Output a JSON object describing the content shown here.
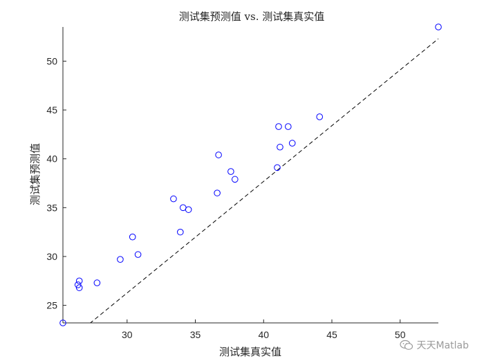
{
  "chart_data": {
    "type": "scatter",
    "title": "测试集预测值 vs. 测试集真实值",
    "xlabel": "测试集真实值",
    "ylabel": "测试集预测值",
    "xlim": [
      25.3,
      52.8
    ],
    "ylim": [
      23.2,
      53.5
    ],
    "xticks": [
      30,
      35,
      40,
      45,
      50
    ],
    "yticks": [
      25,
      30,
      35,
      40,
      45,
      50
    ],
    "grid": false,
    "points": [
      {
        "x": 25.3,
        "y": 23.2
      },
      {
        "x": 26.4,
        "y": 27.1
      },
      {
        "x": 26.5,
        "y": 27.5
      },
      {
        "x": 26.5,
        "y": 26.8
      },
      {
        "x": 27.8,
        "y": 27.3
      },
      {
        "x": 29.5,
        "y": 29.7
      },
      {
        "x": 30.4,
        "y": 32.0
      },
      {
        "x": 30.8,
        "y": 30.2
      },
      {
        "x": 33.4,
        "y": 35.9
      },
      {
        "x": 33.9,
        "y": 32.5
      },
      {
        "x": 34.1,
        "y": 35.0
      },
      {
        "x": 34.5,
        "y": 34.8
      },
      {
        "x": 36.6,
        "y": 36.5
      },
      {
        "x": 36.7,
        "y": 40.4
      },
      {
        "x": 37.6,
        "y": 38.7
      },
      {
        "x": 37.9,
        "y": 37.9
      },
      {
        "x": 41.0,
        "y": 39.1
      },
      {
        "x": 41.1,
        "y": 43.3
      },
      {
        "x": 41.2,
        "y": 41.2
      },
      {
        "x": 41.8,
        "y": 43.3
      },
      {
        "x": 42.1,
        "y": 41.6
      },
      {
        "x": 44.1,
        "y": 44.3
      },
      {
        "x": 52.8,
        "y": 53.5
      }
    ],
    "reference_line": {
      "x": [
        25.3,
        52.8
      ],
      "y": [
        20.9,
        52.3
      ]
    }
  },
  "watermark": {
    "icon": "wechat-icon",
    "text": "天天Matlab"
  }
}
